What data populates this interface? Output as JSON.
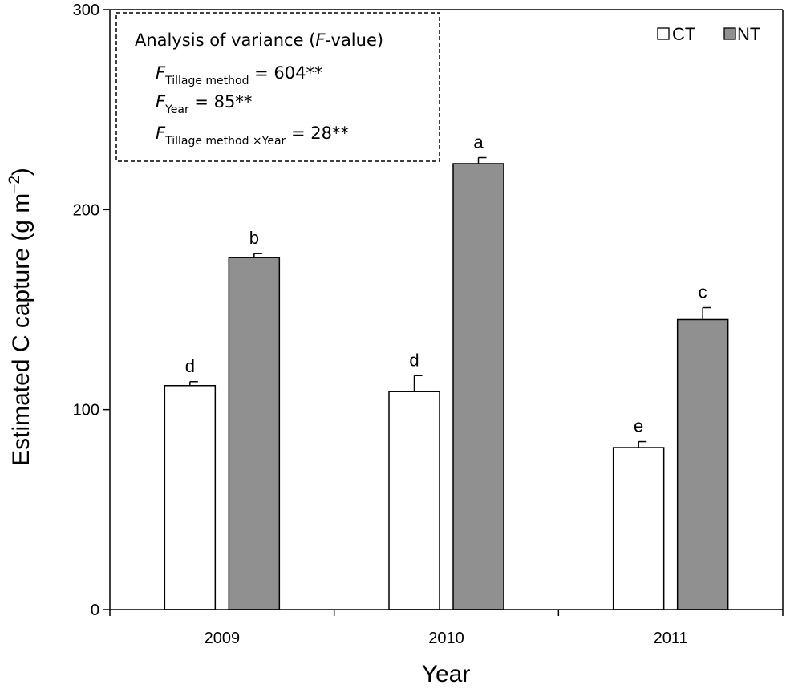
{
  "chart_data": {
    "type": "bar",
    "categories": [
      "2009",
      "2010",
      "2011"
    ],
    "series": [
      {
        "name": "CT",
        "values": [
          112,
          109,
          81
        ],
        "errors": [
          2,
          8,
          3
        ],
        "letters": [
          "d",
          "d",
          "e"
        ],
        "color": "#ffffff"
      },
      {
        "name": "NT",
        "values": [
          176,
          223,
          145
        ],
        "errors": [
          2,
          3,
          6
        ],
        "letters": [
          "b",
          "a",
          "c"
        ],
        "color": "#909090"
      }
    ],
    "xlabel": "Year",
    "ylabel": "Estimated C capture (g m",
    "ylabel_sup": "−2",
    "ylabel_close": ")",
    "ylim": [
      0,
      300
    ],
    "yticks": [
      "0",
      "100",
      "200",
      "300"
    ],
    "legend_position": "top-right",
    "grid": false
  },
  "anova": {
    "title_prefix": "Analysis of variance (",
    "title_italic": "F",
    "title_suffix": "-value)",
    "rows": [
      {
        "f": "F",
        "sub": "Tillage method",
        "value": " = 604**"
      },
      {
        "f": "F",
        "sub": "Year",
        "value": " = 85**"
      },
      {
        "f": "F",
        "sub": "Tillage method ×Year",
        "value": " = 28**"
      }
    ]
  }
}
